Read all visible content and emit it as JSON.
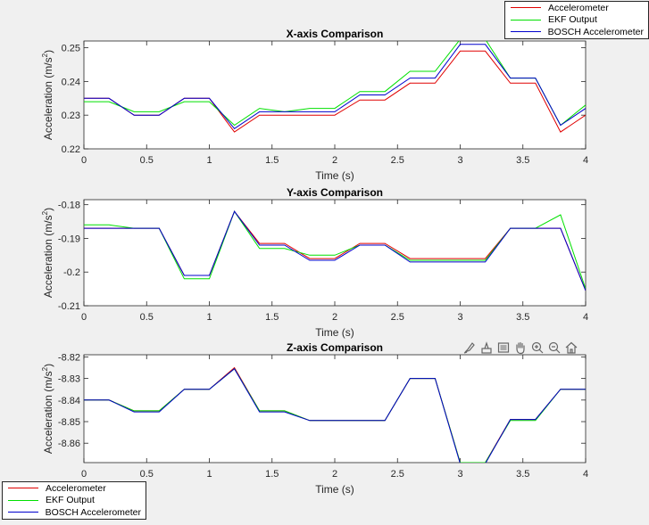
{
  "colors": {
    "series": [
      "#e00000",
      "#00e000",
      "#0000cc"
    ]
  },
  "legend_entries": [
    "Accelerometer",
    "EKF Output",
    "BOSCH Accelerometer"
  ],
  "toolbar_icons": [
    "brush-icon",
    "data-tip-icon",
    "brush-select-icon",
    "pan-hand-icon",
    "zoom-in-icon",
    "zoom-out-icon",
    "home-icon"
  ],
  "chart_data": [
    {
      "type": "line",
      "title": "X-axis Comparison",
      "xlabel": "Time (s)",
      "ylabel_base": "Acceleration (m/s",
      "ylabel_sup": "2",
      "ylabel_close": ")",
      "xlim": [
        0,
        4
      ],
      "ylim": [
        0.22,
        0.252
      ],
      "xticks": [
        "0",
        "0.5",
        "1",
        "1.5",
        "2",
        "2.5",
        "3",
        "3.5",
        "4"
      ],
      "yticks": [
        "0.22",
        "0.23",
        "0.24",
        "0.25"
      ],
      "x": [
        0,
        0.2,
        0.4,
        0.6,
        0.8,
        1.0,
        1.2,
        1.4,
        1.6,
        1.8,
        2.0,
        2.2,
        2.4,
        2.6,
        2.8,
        3.0,
        3.2,
        3.4,
        3.6,
        3.8,
        4.0
      ],
      "series": [
        {
          "name": "Accelerometer",
          "values": [
            0.235,
            0.235,
            0.23,
            0.23,
            0.235,
            0.235,
            0.225,
            0.23,
            0.23,
            0.23,
            0.23,
            0.2345,
            0.2345,
            0.2395,
            0.2395,
            0.249,
            0.249,
            0.2395,
            0.2395,
            0.225,
            0.23
          ]
        },
        {
          "name": "EKF Output",
          "values": [
            0.234,
            0.234,
            0.231,
            0.231,
            0.234,
            0.234,
            0.227,
            0.232,
            0.231,
            0.232,
            0.232,
            0.237,
            0.237,
            0.243,
            0.243,
            0.2525,
            0.2525,
            0.241,
            0.241,
            0.227,
            0.233
          ]
        },
        {
          "name": "BOSCH Accelerometer",
          "values": [
            0.235,
            0.235,
            0.23,
            0.23,
            0.235,
            0.235,
            0.226,
            0.231,
            0.231,
            0.231,
            0.231,
            0.236,
            0.236,
            0.241,
            0.241,
            0.251,
            0.251,
            0.241,
            0.241,
            0.227,
            0.232
          ]
        }
      ]
    },
    {
      "type": "line",
      "title": "Y-axis Comparison",
      "xlabel": "Time (s)",
      "ylabel_base": "Acceleration (m/s",
      "ylabel_sup": "2",
      "ylabel_close": ")",
      "xlim": [
        0,
        4
      ],
      "ylim": [
        -0.21,
        -0.1785
      ],
      "xticks": [
        "0",
        "0.5",
        "1",
        "1.5",
        "2",
        "2.5",
        "3",
        "3.5",
        "4"
      ],
      "yticks": [
        "-0.18",
        "-0.19",
        "-0.2",
        "-0.21"
      ],
      "x": [
        0,
        0.2,
        0.4,
        0.6,
        0.8,
        1.0,
        1.2,
        1.4,
        1.6,
        1.8,
        2.0,
        2.2,
        2.4,
        2.6,
        2.8,
        3.0,
        3.2,
        3.4,
        3.6,
        3.8,
        4.0
      ],
      "series": [
        {
          "name": "Accelerometer",
          "values": [
            -0.187,
            -0.187,
            -0.187,
            -0.187,
            -0.201,
            -0.201,
            -0.182,
            -0.1915,
            -0.1915,
            -0.196,
            -0.196,
            -0.1915,
            -0.1915,
            -0.196,
            -0.196,
            -0.196,
            -0.196,
            -0.187,
            -0.187,
            -0.187,
            -0.2055
          ]
        },
        {
          "name": "EKF Output",
          "values": [
            -0.186,
            -0.186,
            -0.187,
            -0.187,
            -0.202,
            -0.202,
            -0.182,
            -0.193,
            -0.193,
            -0.195,
            -0.195,
            -0.192,
            -0.192,
            -0.1965,
            -0.1965,
            -0.1965,
            -0.1965,
            -0.187,
            -0.187,
            -0.183,
            -0.205
          ]
        },
        {
          "name": "BOSCH Accelerometer",
          "values": [
            -0.187,
            -0.187,
            -0.187,
            -0.187,
            -0.201,
            -0.201,
            -0.182,
            -0.192,
            -0.192,
            -0.1965,
            -0.1965,
            -0.192,
            -0.192,
            -0.197,
            -0.197,
            -0.197,
            -0.197,
            -0.187,
            -0.187,
            -0.187,
            -0.2055
          ]
        }
      ]
    },
    {
      "type": "line",
      "title": "Z-axis Comparison",
      "xlabel": "Time (s)",
      "ylabel_base": "Acceleration (m/s",
      "ylabel_sup": "2",
      "ylabel_close": ")",
      "xlim": [
        0,
        4
      ],
      "ylim": [
        -8.869,
        -8.819
      ],
      "xticks": [
        "0",
        "0.5",
        "1",
        "1.5",
        "2",
        "2.5",
        "3",
        "3.5",
        "4"
      ],
      "yticks": [
        "-8.82",
        "-8.83",
        "-8.84",
        "-8.85",
        "-8.86"
      ],
      "x": [
        0,
        0.2,
        0.4,
        0.6,
        0.8,
        1.0,
        1.2,
        1.4,
        1.6,
        1.8,
        2.0,
        2.2,
        2.4,
        2.6,
        2.8,
        3.0,
        3.2,
        3.4,
        3.6,
        3.8,
        4.0
      ],
      "series": [
        {
          "name": "Accelerometer",
          "values": [
            -8.84,
            -8.84,
            -8.845,
            -8.845,
            -8.835,
            -8.835,
            -8.825,
            -8.845,
            -8.845,
            -8.8495,
            -8.8495,
            -8.8495,
            -8.8495,
            -8.83,
            -8.83,
            -8.869,
            -8.869,
            -8.849,
            -8.849,
            -8.835,
            -8.835
          ]
        },
        {
          "name": "EKF Output",
          "values": [
            -8.84,
            -8.84,
            -8.845,
            -8.845,
            -8.835,
            -8.835,
            -8.8255,
            -8.845,
            -8.845,
            -8.8495,
            -8.8495,
            -8.8495,
            -8.8495,
            -8.83,
            -8.83,
            -8.869,
            -8.869,
            -8.8495,
            -8.8495,
            -8.835,
            -8.835
          ]
        },
        {
          "name": "BOSCH Accelerometer",
          "values": [
            -8.84,
            -8.84,
            -8.8455,
            -8.8455,
            -8.835,
            -8.835,
            -8.8255,
            -8.8455,
            -8.8455,
            -8.8495,
            -8.8495,
            -8.8495,
            -8.8495,
            -8.83,
            -8.83,
            -8.8695,
            -8.8695,
            -8.849,
            -8.849,
            -8.835,
            -8.835
          ]
        }
      ]
    }
  ]
}
